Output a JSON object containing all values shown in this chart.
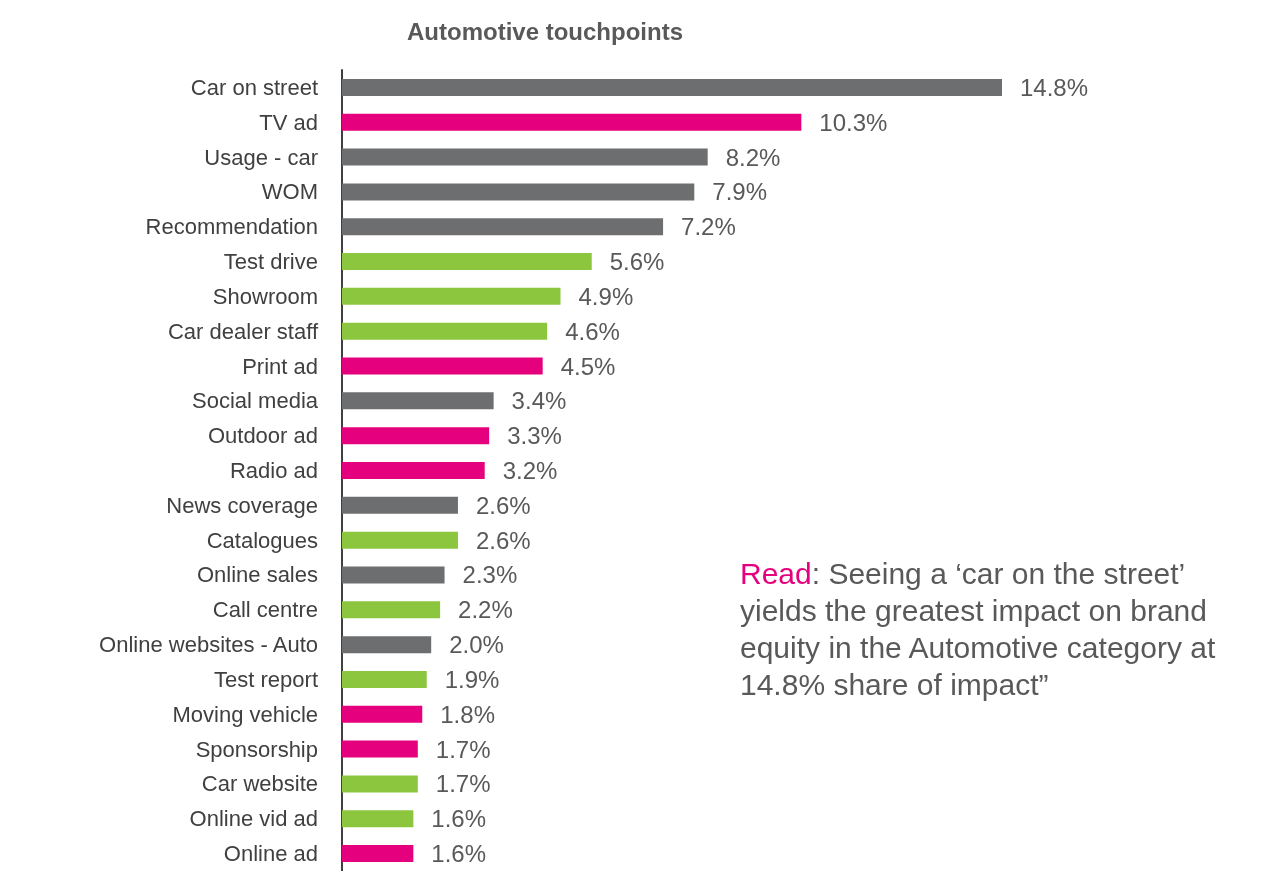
{
  "chart_data": {
    "type": "bar",
    "orientation": "horizontal",
    "title": "Automotive touchpoints",
    "categories": [
      "Car on street",
      "TV ad",
      "Usage - car",
      "WOM",
      "Recommendation",
      "Test drive",
      "Showroom",
      "Car dealer staff",
      "Print ad",
      "Social media",
      "Outdoor ad",
      "Radio ad",
      "News coverage",
      "Catalogues",
      "Online sales",
      "Call centre",
      "Online websites - Auto",
      "Test report",
      "Moving vehicle",
      "Sponsorship",
      "Car website",
      "Online vid ad",
      "Online ad"
    ],
    "values": [
      14.8,
      10.3,
      8.2,
      7.9,
      7.2,
      5.6,
      4.9,
      4.6,
      4.5,
      3.4,
      3.3,
      3.2,
      2.6,
      2.6,
      2.3,
      2.2,
      2.0,
      1.9,
      1.8,
      1.7,
      1.7,
      1.6,
      1.6
    ],
    "value_labels": [
      "14.8%",
      "10.3%",
      "8.2%",
      "7.9%",
      "7.2%",
      "5.6%",
      "4.9%",
      "4.6%",
      "4.5%",
      "3.4%",
      "3.3%",
      "3.2%",
      "2.6%",
      "2.6%",
      "2.3%",
      "2.2%",
      "2.0%",
      "1.9%",
      "1.8%",
      "1.7%",
      "1.7%",
      "1.6%",
      "1.6%"
    ],
    "colors": [
      "#6d6e70",
      "#e5007d",
      "#6d6e70",
      "#6d6e70",
      "#6d6e70",
      "#8cc63f",
      "#8cc63f",
      "#8cc63f",
      "#e5007d",
      "#6d6e70",
      "#e5007d",
      "#e5007d",
      "#6d6e70",
      "#8cc63f",
      "#6d6e70",
      "#8cc63f",
      "#6d6e70",
      "#8cc63f",
      "#e5007d",
      "#e5007d",
      "#8cc63f",
      "#8cc63f",
      "#e5007d"
    ],
    "annotations": [
      "Read: Seeing a ‘car on the street’ yields the greatest impact on brand equity in the Automotive category at 14.8% share of impact”"
    ]
  }
}
